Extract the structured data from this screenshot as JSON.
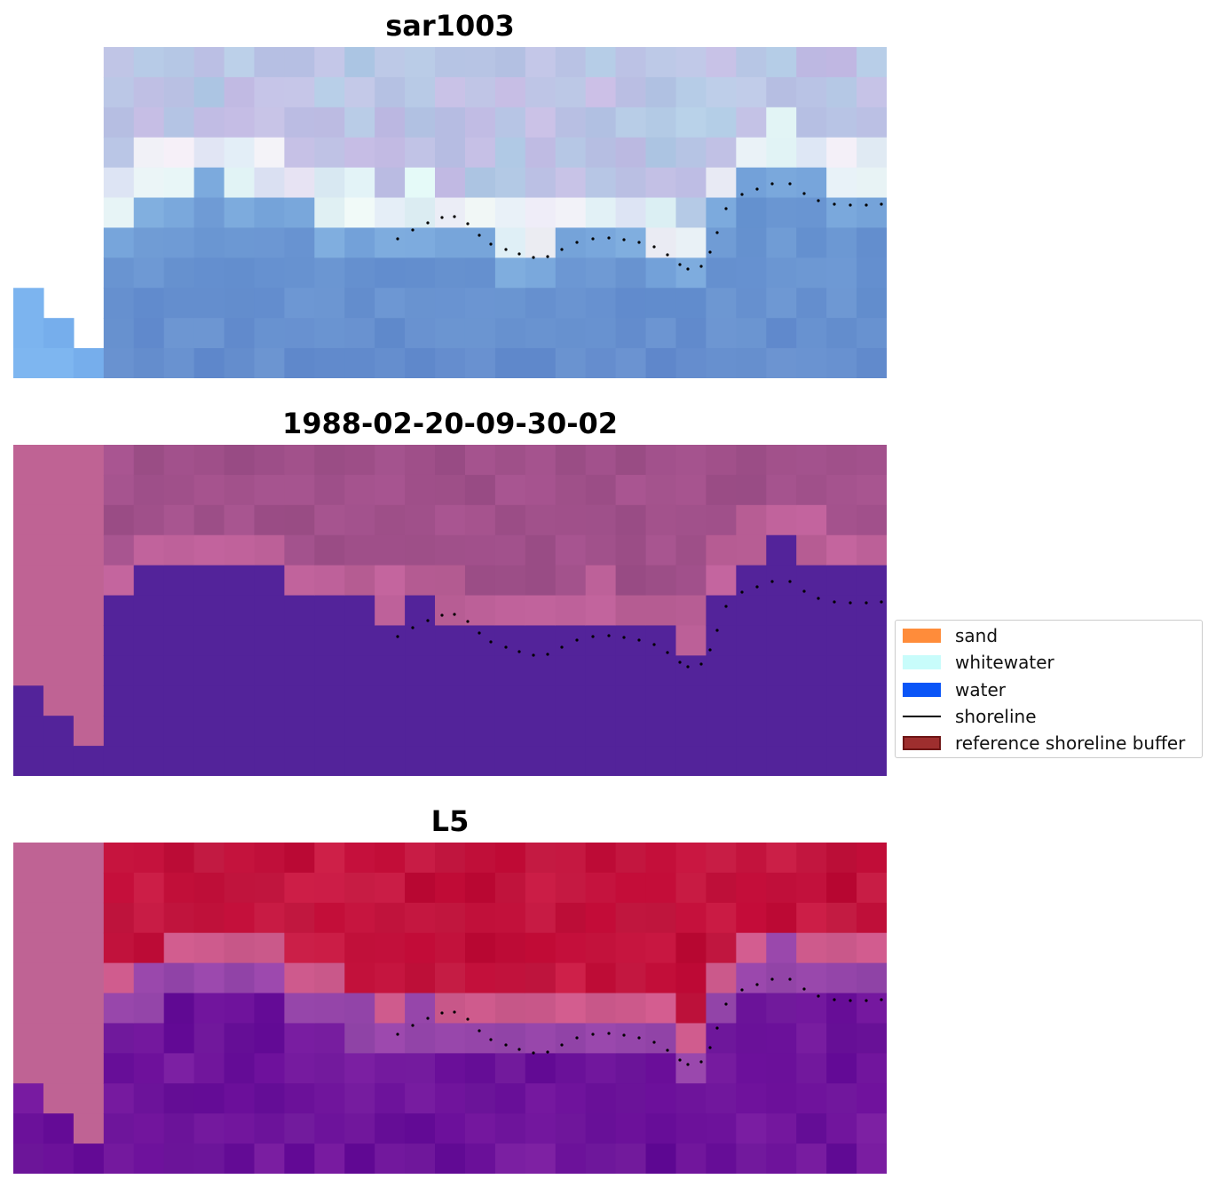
{
  "panels": [
    {
      "title": "sar1003",
      "style": "rgb"
    },
    {
      "title": "1988-02-20-09-30-02",
      "style": "classified"
    },
    {
      "title": "L5",
      "style": "index"
    }
  ],
  "legend": {
    "items": [
      {
        "label": "sand",
        "kind": "patch",
        "color": "#ff8c3a"
      },
      {
        "label": "whitewater",
        "kind": "patch",
        "color": "#c8fcfb"
      },
      {
        "label": "water",
        "kind": "patch",
        "color": "#0a55f7"
      },
      {
        "label": "shoreline",
        "kind": "line",
        "color": "#000000"
      },
      {
        "label": "reference shoreline buffer",
        "kind": "patch",
        "color": "#9e2e2e",
        "edge": "#6e1515"
      }
    ]
  },
  "colors": {
    "buffer_overlay": "#bf6394",
    "class_water": "#53239a",
    "index_land": "#c21d45",
    "index_water": "#65119a",
    "shoreline_dots": "#000000"
  }
}
